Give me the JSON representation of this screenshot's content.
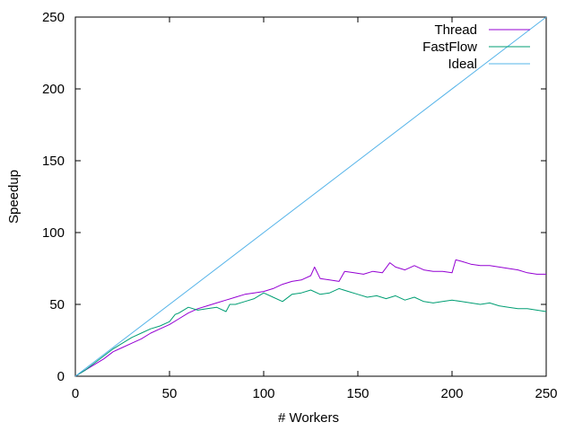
{
  "chart_data": {
    "type": "line",
    "title": "",
    "xlabel": "# Workers",
    "ylabel": "Speedup",
    "xlim": [
      0,
      250
    ],
    "ylim": [
      0,
      250
    ],
    "xticks": [
      0,
      50,
      100,
      150,
      200,
      250
    ],
    "yticks": [
      0,
      50,
      100,
      150,
      200,
      250
    ],
    "grid": false,
    "legend_position": "top-right",
    "series": [
      {
        "name": "Thread",
        "color": "#9400d3",
        "points": [
          [
            0,
            0
          ],
          [
            5,
            4
          ],
          [
            10,
            8
          ],
          [
            15,
            12
          ],
          [
            20,
            17
          ],
          [
            25,
            20
          ],
          [
            30,
            23
          ],
          [
            35,
            26
          ],
          [
            40,
            30
          ],
          [
            45,
            33
          ],
          [
            50,
            36
          ],
          [
            55,
            40
          ],
          [
            60,
            44
          ],
          [
            65,
            47
          ],
          [
            70,
            49
          ],
          [
            75,
            51
          ],
          [
            80,
            53
          ],
          [
            85,
            55
          ],
          [
            90,
            57
          ],
          [
            95,
            58
          ],
          [
            100,
            59
          ],
          [
            105,
            61
          ],
          [
            110,
            64
          ],
          [
            115,
            66
          ],
          [
            120,
            67
          ],
          [
            125,
            70
          ],
          [
            127,
            76
          ],
          [
            130,
            68
          ],
          [
            135,
            67
          ],
          [
            140,
            66
          ],
          [
            143,
            73
          ],
          [
            148,
            72
          ],
          [
            153,
            71
          ],
          [
            158,
            73
          ],
          [
            163,
            72
          ],
          [
            167,
            79
          ],
          [
            170,
            76
          ],
          [
            175,
            74
          ],
          [
            180,
            77
          ],
          [
            185,
            74
          ],
          [
            190,
            73
          ],
          [
            195,
            73
          ],
          [
            200,
            72
          ],
          [
            202,
            81
          ],
          [
            205,
            80
          ],
          [
            210,
            78
          ],
          [
            215,
            77
          ],
          [
            220,
            77
          ],
          [
            225,
            76
          ],
          [
            230,
            75
          ],
          [
            235,
            74
          ],
          [
            240,
            72
          ],
          [
            245,
            71
          ],
          [
            250,
            71
          ]
        ]
      },
      {
        "name": "FastFlow",
        "color": "#009e73",
        "points": [
          [
            0,
            0
          ],
          [
            5,
            4
          ],
          [
            10,
            9
          ],
          [
            15,
            14
          ],
          [
            20,
            19
          ],
          [
            25,
            23
          ],
          [
            30,
            27
          ],
          [
            35,
            30
          ],
          [
            40,
            33
          ],
          [
            45,
            35
          ],
          [
            50,
            38
          ],
          [
            53,
            43
          ],
          [
            55,
            44
          ],
          [
            60,
            48
          ],
          [
            65,
            46
          ],
          [
            70,
            47
          ],
          [
            75,
            48
          ],
          [
            80,
            45
          ],
          [
            82,
            50
          ],
          [
            85,
            50
          ],
          [
            90,
            52
          ],
          [
            95,
            54
          ],
          [
            100,
            58
          ],
          [
            105,
            55
          ],
          [
            110,
            52
          ],
          [
            115,
            57
          ],
          [
            120,
            58
          ],
          [
            125,
            60
          ],
          [
            130,
            57
          ],
          [
            135,
            58
          ],
          [
            140,
            61
          ],
          [
            145,
            59
          ],
          [
            150,
            57
          ],
          [
            155,
            55
          ],
          [
            160,
            56
          ],
          [
            165,
            54
          ],
          [
            170,
            56
          ],
          [
            175,
            53
          ],
          [
            180,
            55
          ],
          [
            185,
            52
          ],
          [
            190,
            51
          ],
          [
            195,
            52
          ],
          [
            200,
            53
          ],
          [
            205,
            52
          ],
          [
            210,
            51
          ],
          [
            215,
            50
          ],
          [
            220,
            51
          ],
          [
            225,
            49
          ],
          [
            230,
            48
          ],
          [
            235,
            47
          ],
          [
            240,
            47
          ],
          [
            245,
            46
          ],
          [
            250,
            45
          ]
        ]
      },
      {
        "name": "Ideal",
        "color": "#56b4e9",
        "points": [
          [
            0,
            0
          ],
          [
            250,
            250
          ]
        ]
      }
    ]
  }
}
